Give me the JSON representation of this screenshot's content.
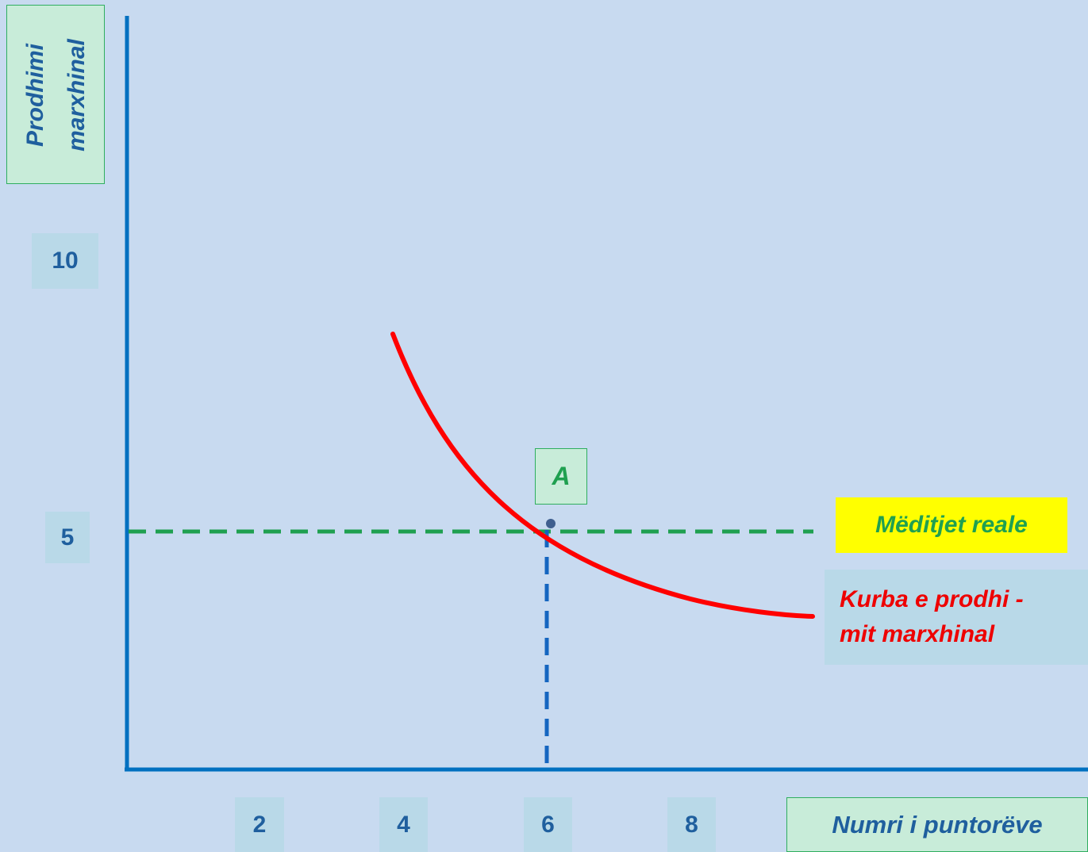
{
  "y_axis_label": [
    "Prodhimi",
    "marxhinal"
  ],
  "x_axis_label": "Numri i puntorëve",
  "y_ticks": [
    "10",
    "5"
  ],
  "x_ticks": [
    "2",
    "4",
    "6",
    "8"
  ],
  "point_label": "A",
  "wage_label": "Mëditjet reale",
  "curve_label": [
    "Kurba e prodhi -",
    "mit  marxhinal"
  ],
  "colors": {
    "background": "#c8daf0",
    "axis": "#0070c0",
    "curve": "#ff0000",
    "wage_line": "#1fa050",
    "drop_line": "#1565c0"
  }
}
